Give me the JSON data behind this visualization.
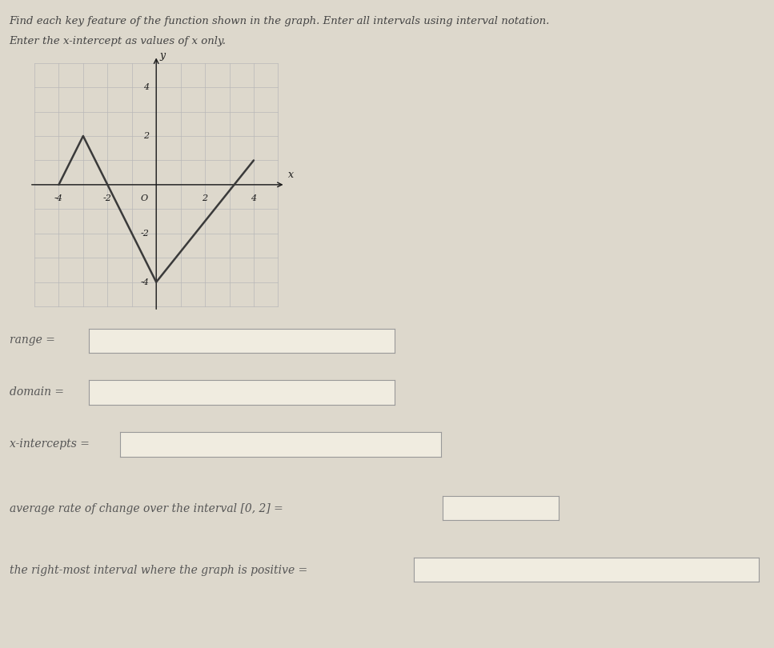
{
  "graph_points": [
    [
      -4,
      0
    ],
    [
      -3,
      2
    ],
    [
      -2,
      0
    ],
    [
      0,
      -4
    ],
    [
      4,
      1
    ]
  ],
  "graph_color": "#3a3a3a",
  "graph_linewidth": 1.8,
  "grid_color": "#b8b8b8",
  "axis_color": "#1a1a1a",
  "background_color": "#ddd8cc",
  "graph_bg": "#e8e4d8",
  "title_line1": "Find each key feature of the function shown in the graph. Enter all intervals using interval notation.",
  "title_line2": "Enter the x-intercept as values of x only.",
  "labels": {
    "range": "range =",
    "domain": "domain =",
    "x_intercepts": "x-intercepts =",
    "avg_rate": "average rate of change over the interval [0, 2] =",
    "rightmost": "the right-most interval where the graph is positive ="
  },
  "xmin": -5,
  "xmax": 5,
  "ymin": -5,
  "ymax": 5,
  "xticks": [
    -4,
    -2,
    2,
    4
  ],
  "yticks": [
    -4,
    -2,
    2,
    4
  ],
  "xlabel": "x",
  "ylabel": "y",
  "box_color": "#f0ece0",
  "box_edge_color": "#999999",
  "title_fontsize": 9.5,
  "label_fontsize": 10,
  "tick_fontsize": 8
}
